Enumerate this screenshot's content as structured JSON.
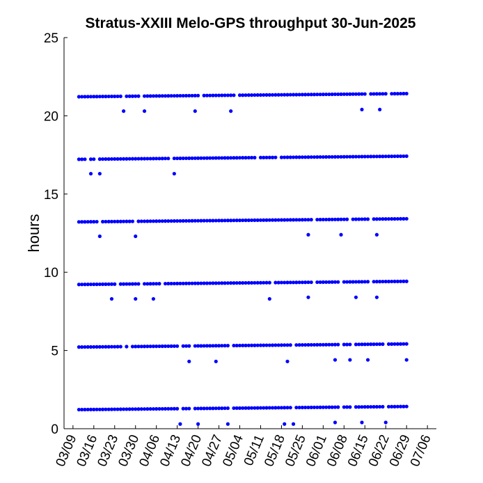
{
  "chart_data": {
    "type": "scatter",
    "title": "Stratus-XXIII Melo-GPS throughput 30-Jun-2025",
    "xlabel": "",
    "ylabel": "hours",
    "ylim": [
      0,
      25
    ],
    "y_ticks": [
      "0",
      "5",
      "10",
      "15",
      "20",
      "25"
    ],
    "y_tick_values": [
      0,
      5,
      10,
      15,
      20,
      25
    ],
    "x_ticks": [
      "03/09",
      "03/16",
      "03/23",
      "03/30",
      "04/06",
      "04/13",
      "04/20",
      "04/27",
      "05/04",
      "05/11",
      "05/18",
      "05/25",
      "06/01",
      "06/08",
      "06/15",
      "06/22",
      "06/29",
      "07/06"
    ],
    "x_tick_dates": [
      "2025-03-09",
      "2025-03-16",
      "2025-03-23",
      "2025-03-30",
      "2025-04-06",
      "2025-04-13",
      "2025-04-20",
      "2025-04-27",
      "2025-05-04",
      "2025-05-11",
      "2025-05-18",
      "2025-05-25",
      "2025-06-01",
      "2025-06-08",
      "2025-06-15",
      "2025-06-22",
      "2025-06-29",
      "2025-07-06"
    ],
    "xlim": [
      "2025-03-06",
      "2025-07-09"
    ],
    "grid": false,
    "marker_color": "#0000ff",
    "series": [
      {
        "description": "main sessions",
        "bands": [
          {
            "y_start": 1.22,
            "y_end": 1.42,
            "x_start": "2025-03-11",
            "x_end": "2025-06-29",
            "gaps": [
              "2025-04-14",
              "2025-04-18",
              "2025-05-01",
              "2025-05-22",
              "2025-06-07",
              "2025-06-11",
              "2025-06-22"
            ]
          },
          {
            "y_start": 5.22,
            "y_end": 5.42,
            "x_start": "2025-03-11",
            "x_end": "2025-06-29",
            "gaps": [
              "2025-03-26",
              "2025-03-28",
              "2025-04-14",
              "2025-04-18",
              "2025-05-01",
              "2025-05-22",
              "2025-06-07",
              "2025-06-11",
              "2025-06-22"
            ]
          },
          {
            "y_start": 9.22,
            "y_end": 9.42,
            "x_start": "2025-03-11",
            "x_end": "2025-06-29",
            "gaps": [
              "2025-03-24",
              "2025-04-01",
              "2025-04-08",
              "2025-05-15",
              "2025-05-29",
              "2025-06-07",
              "2025-06-17"
            ]
          },
          {
            "y_start": 13.22,
            "y_end": 13.42,
            "x_start": "2025-03-11",
            "x_end": "2025-06-29",
            "gaps": [
              "2025-03-18",
              "2025-03-30",
              "2025-05-29",
              "2025-06-10",
              "2025-06-17"
            ]
          },
          {
            "y_start": 17.22,
            "y_end": 17.42,
            "x_start": "2025-03-11",
            "x_end": "2025-06-29",
            "gaps": [
              "2025-03-14",
              "2025-03-17",
              "2025-04-11",
              "2025-05-10",
              "2025-05-17"
            ]
          },
          {
            "y_start": 21.22,
            "y_end": 21.42,
            "x_start": "2025-03-11",
            "x_end": "2025-06-29",
            "gaps": [
              "2025-03-26",
              "2025-04-01",
              "2025-04-21",
              "2025-05-03",
              "2025-06-16",
              "2025-06-23"
            ]
          }
        ]
      },
      {
        "description": "outliers",
        "points": [
          {
            "x": "2025-03-15",
            "y": 16.3
          },
          {
            "x": "2025-03-18",
            "y": 16.3
          },
          {
            "x": "2025-03-18",
            "y": 12.3
          },
          {
            "x": "2025-03-22",
            "y": 8.3
          },
          {
            "x": "2025-03-26",
            "y": 20.3
          },
          {
            "x": "2025-03-30",
            "y": 12.3
          },
          {
            "x": "2025-03-30",
            "y": 8.3
          },
          {
            "x": "2025-04-02",
            "y": 20.3
          },
          {
            "x": "2025-04-05",
            "y": 8.3
          },
          {
            "x": "2025-04-12",
            "y": 16.3
          },
          {
            "x": "2025-04-14",
            "y": 0.3
          },
          {
            "x": "2025-04-17",
            "y": 4.3
          },
          {
            "x": "2025-04-19",
            "y": 20.3
          },
          {
            "x": "2025-04-20",
            "y": 0.3
          },
          {
            "x": "2025-04-26",
            "y": 4.3
          },
          {
            "x": "2025-04-30",
            "y": 0.3
          },
          {
            "x": "2025-05-01",
            "y": 20.3
          },
          {
            "x": "2025-05-14",
            "y": 8.3
          },
          {
            "x": "2025-05-19",
            "y": 0.3
          },
          {
            "x": "2025-05-20",
            "y": 4.3
          },
          {
            "x": "2025-05-22",
            "y": 0.3
          },
          {
            "x": "2025-05-27",
            "y": 12.4
          },
          {
            "x": "2025-05-27",
            "y": 8.4
          },
          {
            "x": "2025-06-05",
            "y": 4.4
          },
          {
            "x": "2025-06-05",
            "y": 0.4
          },
          {
            "x": "2025-06-07",
            "y": 12.4
          },
          {
            "x": "2025-06-10",
            "y": 4.4
          },
          {
            "x": "2025-06-12",
            "y": 8.4
          },
          {
            "x": "2025-06-14",
            "y": 20.4
          },
          {
            "x": "2025-06-14",
            "y": 0.4
          },
          {
            "x": "2025-06-16",
            "y": 4.4
          },
          {
            "x": "2025-06-19",
            "y": 12.4
          },
          {
            "x": "2025-06-19",
            "y": 8.4
          },
          {
            "x": "2025-06-20",
            "y": 20.4
          },
          {
            "x": "2025-06-22",
            "y": 0.4
          },
          {
            "x": "2025-06-29",
            "y": 4.4
          }
        ]
      }
    ]
  }
}
